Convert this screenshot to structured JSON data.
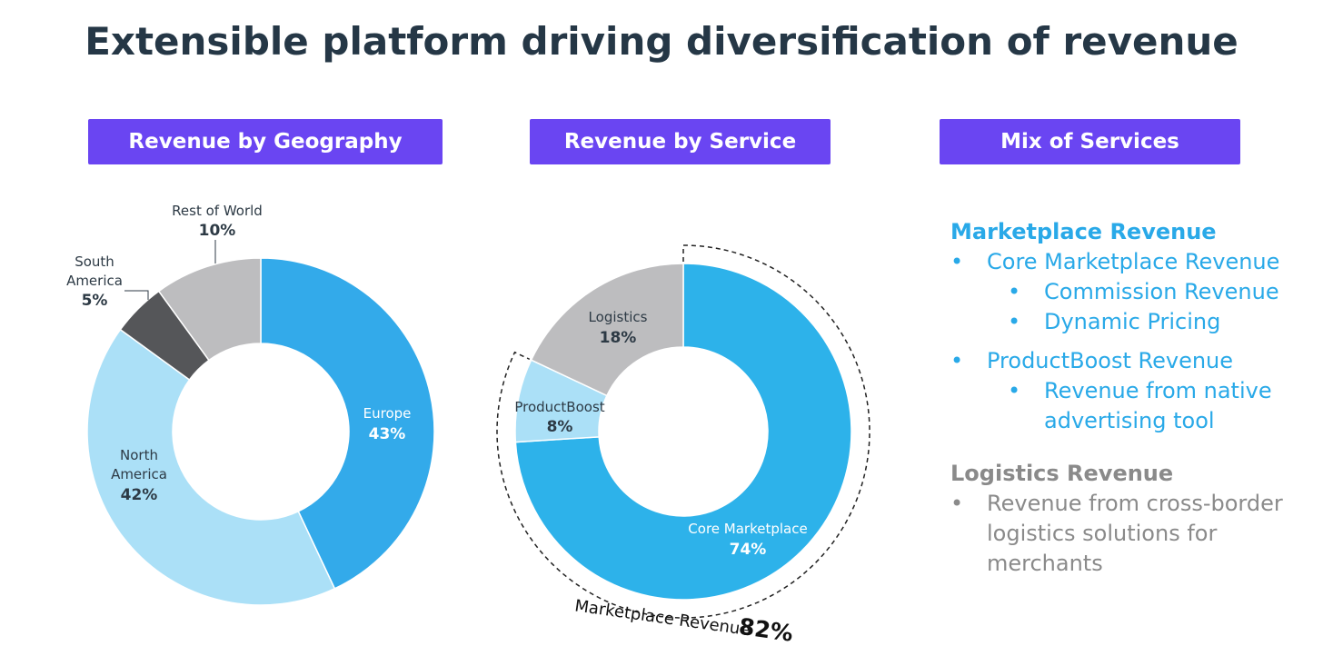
{
  "title": "Extensible platform driving diversification of revenue",
  "headers": {
    "geography": "Revenue by Geography",
    "service": "Revenue by Service",
    "mix": "Mix of Services"
  },
  "chart_data": [
    {
      "type": "pie",
      "title": "Revenue by Geography",
      "slices": [
        {
          "label": "Europe",
          "value": 43,
          "display": "43%",
          "color": "#33aaea"
        },
        {
          "label": "North America",
          "value": 42,
          "display": "42%",
          "color": "#abe0f7"
        },
        {
          "label": "South America",
          "value": 5,
          "display": "5%",
          "color": "#555659"
        },
        {
          "label": "Rest of World",
          "value": 10,
          "display": "10%",
          "color": "#bdbdbf"
        }
      ]
    },
    {
      "type": "pie",
      "title": "Revenue by Service",
      "slices": [
        {
          "label": "Core Marketplace",
          "value": 74,
          "display": "74%",
          "color": "#2db2ea"
        },
        {
          "label": "ProductBoost",
          "value": 8,
          "display": "8%",
          "color": "#abe0f7"
        },
        {
          "label": "Logistics",
          "value": 18,
          "display": "18%",
          "color": "#bdbdbf"
        }
      ],
      "annotation": {
        "text": "Marketplace Revenue",
        "value": "82%"
      }
    }
  ],
  "mix": {
    "marketplace": {
      "title": "Marketplace Revenue",
      "core": "Core Marketplace Revenue",
      "commission": "Commission Revenue",
      "dynamic": "Dynamic Pricing",
      "productboost": "ProductBoost Revenue",
      "native_1": "Revenue from native",
      "native_2": "advertising tool"
    },
    "logistics": {
      "title": "Logistics Revenue",
      "desc_1": "Revenue from cross-border",
      "desc_2": "logistics solutions for",
      "desc_3": "merchants"
    },
    "bullet": "•"
  },
  "colors": {
    "header_bg": "#6a45f2",
    "title": "#253746",
    "accent_blue": "#29a9e8",
    "muted_gray": "#8a8a8a"
  }
}
